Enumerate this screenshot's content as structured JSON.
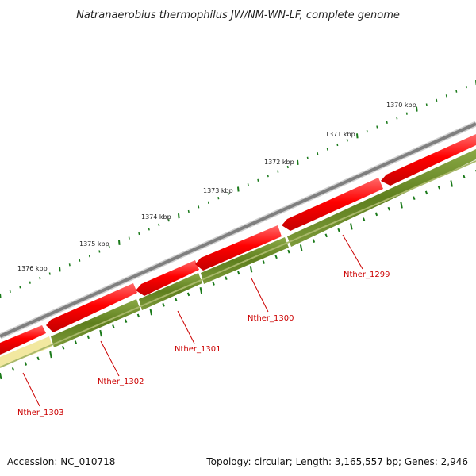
{
  "title": "Natranaerobius thermophilus JW/NM-WN-LF, complete genome",
  "footer": {
    "accession": "Accession: NC_010718",
    "summary": "Topology: circular; Length: 3,165,557 bp; Genes: 2,946"
  },
  "colors": {
    "backbone": "#7f7f7f",
    "forward_gene": "#ff0000",
    "reverse_gene": "#6b8e23",
    "reverse_gene_faint": "#f2e8a0",
    "ticks": "#1a7a1a",
    "gene_label": "#cc0000"
  },
  "scale_labels": [
    "1370 kbp",
    "1371 kbp",
    "1372 kbp",
    "1373 kbp",
    "1374 kbp",
    "1375 kbp",
    "1376 kbp"
  ],
  "gene_labels": [
    "Nther_1299",
    "Nther_1300",
    "Nther_1301",
    "Nther_1302",
    "Nther_1303"
  ]
}
